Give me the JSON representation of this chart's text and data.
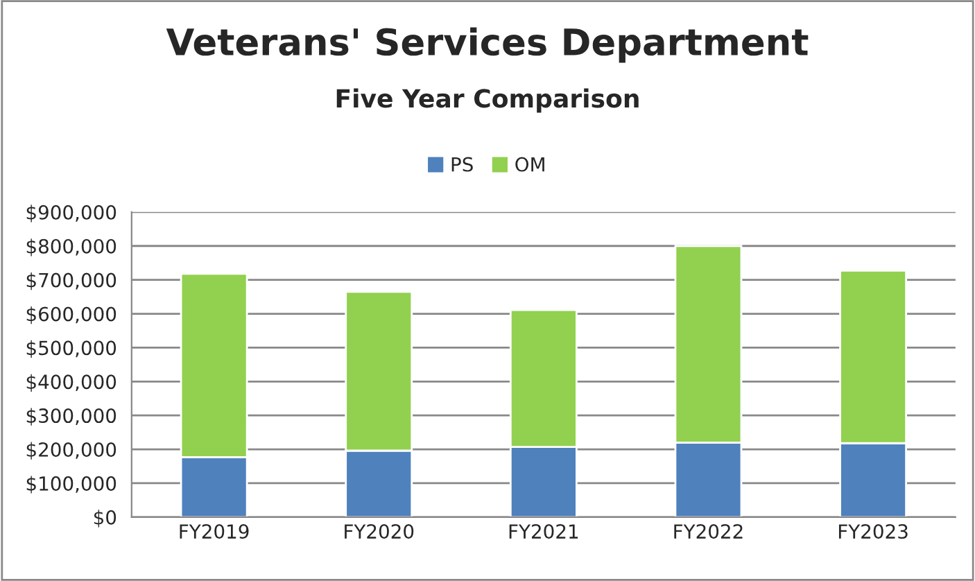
{
  "chart_data": {
    "type": "bar",
    "title": "Veterans' Services Department",
    "subtitle": "Five Year Comparison",
    "categories": [
      "FY2019",
      "FY2020",
      "FY2021",
      "FY2022",
      "FY2023"
    ],
    "stacked": true,
    "series": [
      {
        "name": "PS",
        "color": "#4f81bd",
        "values": [
          177000,
          196000,
          207000,
          220000,
          218000
        ]
      },
      {
        "name": "OM",
        "color": "#92d050",
        "values": [
          541000,
          469000,
          404000,
          580000,
          509000
        ]
      }
    ],
    "ylim": [
      0,
      900000
    ],
    "yticks": [
      {
        "value": 0,
        "label": "$0"
      },
      {
        "value": 100000,
        "label": "$100,000"
      },
      {
        "value": 200000,
        "label": "$200,000"
      },
      {
        "value": 300000,
        "label": "$300,000"
      },
      {
        "value": 400000,
        "label": "$400,000"
      },
      {
        "value": 500000,
        "label": "$500,000"
      },
      {
        "value": 600000,
        "label": "$600,000"
      },
      {
        "value": 700000,
        "label": "$700,000"
      },
      {
        "value": 800000,
        "label": "$800,000"
      },
      {
        "value": 900000,
        "label": "$900,000"
      }
    ],
    "grid": "y",
    "legend": "top"
  }
}
